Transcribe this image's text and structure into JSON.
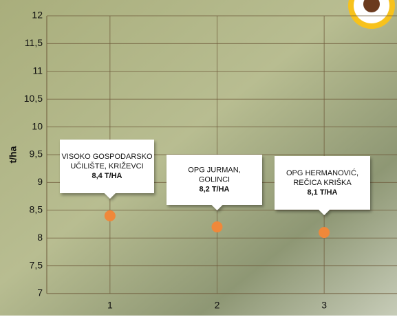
{
  "chart_data": {
    "type": "scatter",
    "ylabel": "t/ha",
    "x": [
      1,
      2,
      3
    ],
    "series": [
      {
        "name": null,
        "color": "#f0883a",
        "values": [
          8.4,
          8.2,
          8.1
        ],
        "value_labels": [
          "8,4 T/HA",
          "8,2 T/HA",
          "8,1 T/HA"
        ]
      }
    ],
    "annotations": [
      [
        "VISOKO GOSPODARSKO",
        "UČILIŠTE, KRIŽEVCI"
      ],
      [
        "OPG JURMAN,",
        "GOLINCI"
      ],
      [
        "OPG HERMANOVIĆ,",
        "REČICA KRIŠKA"
      ]
    ],
    "xlim": [
      0.41,
      3.68
    ],
    "xticks": [
      1,
      2,
      3
    ],
    "ylim": [
      7,
      12
    ],
    "yticks": [
      7,
      {
        "value": 7.5,
        "label": "7,5"
      },
      8,
      {
        "value": 8.5,
        "label": "8,5"
      },
      9,
      {
        "value": 9.5,
        "label": "9,5"
      },
      10,
      {
        "value": 10.5,
        "label": "10,5"
      },
      11,
      {
        "value": 11.5,
        "label": "11,5"
      },
      12
    ],
    "grid": true
  }
}
